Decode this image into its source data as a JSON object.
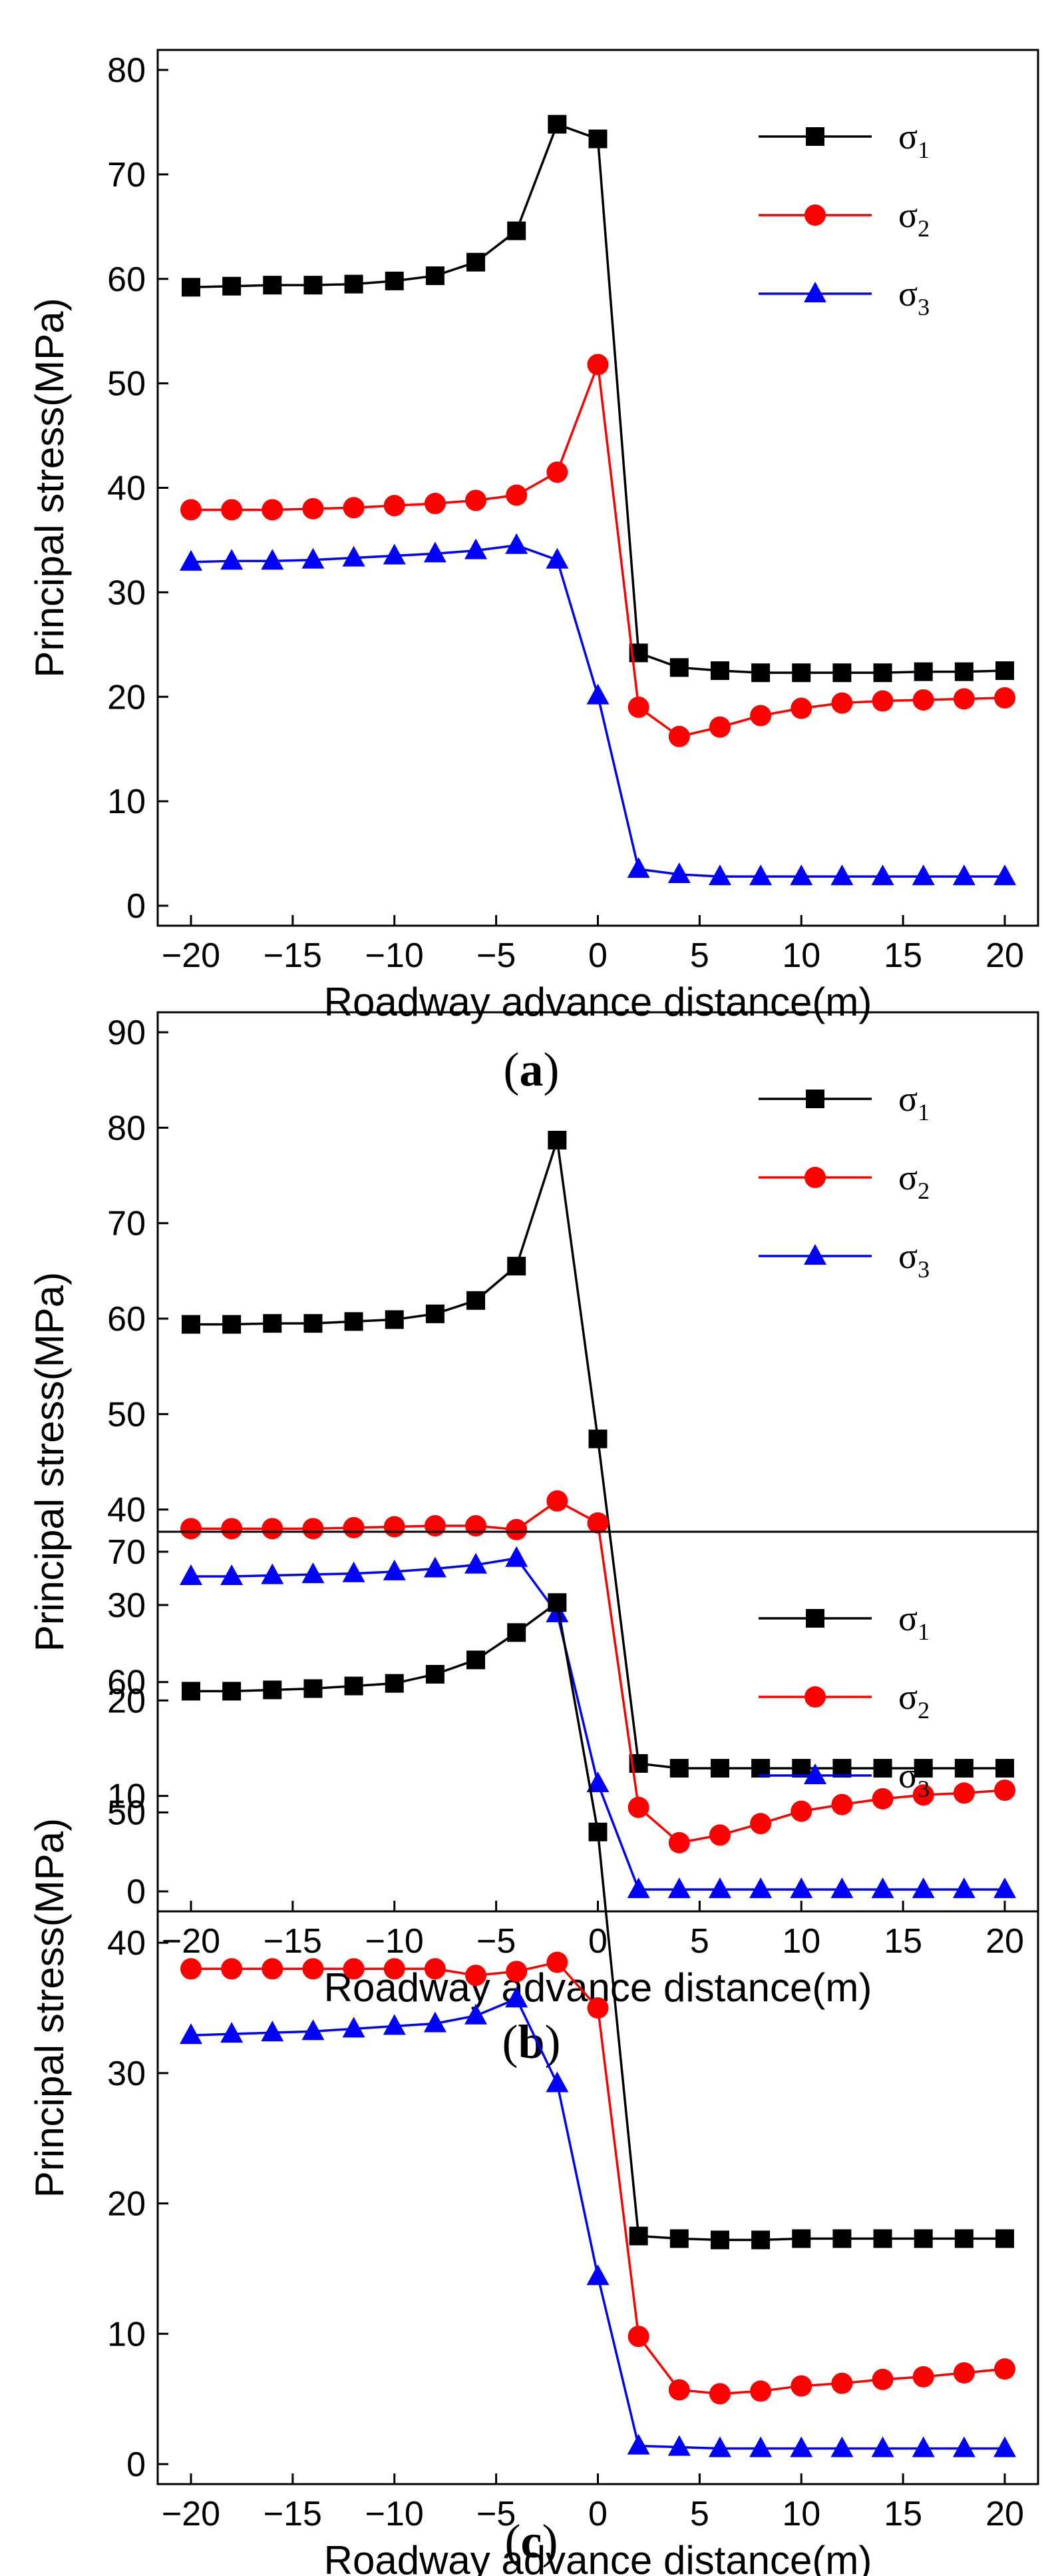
{
  "chart_data": [
    {
      "type": "line",
      "panel_label": "a",
      "xlabel": "Roadway advance distance(m)",
      "ylabel": "Principal stress(MPa)",
      "xlim": [
        -20,
        20
      ],
      "ylim": [
        0,
        80
      ],
      "xticks": [
        -20,
        -15,
        -10,
        -5,
        0,
        5,
        10,
        15,
        20
      ],
      "yticks": [
        0,
        10,
        20,
        30,
        40,
        50,
        60,
        70,
        80
      ],
      "legend_position": "top-right",
      "x": [
        -20,
        -18,
        -16,
        -14,
        -12,
        -10,
        -8,
        -6,
        -4,
        -2,
        0,
        2,
        4,
        6,
        8,
        10,
        12,
        14,
        16,
        18,
        20
      ],
      "series": [
        {
          "name": "σ",
          "sub": "1",
          "color": "#000000",
          "marker": "square",
          "values": [
            59.2,
            59.3,
            59.4,
            59.4,
            59.5,
            59.8,
            60.3,
            61.6,
            64.6,
            74.8,
            73.4,
            24.2,
            22.8,
            22.5,
            22.3,
            22.3,
            22.3,
            22.3,
            22.4,
            22.4,
            22.5
          ]
        },
        {
          "name": "σ",
          "sub": "2",
          "color": "#ff0000",
          "marker": "circle",
          "values": [
            37.9,
            37.9,
            37.9,
            38.0,
            38.1,
            38.3,
            38.5,
            38.8,
            39.3,
            41.5,
            51.8,
            19.0,
            16.2,
            17.1,
            18.2,
            18.9,
            19.4,
            19.6,
            19.7,
            19.8,
            19.9
          ]
        },
        {
          "name": "σ",
          "sub": "3",
          "color": "#0000ff",
          "marker": "triangle",
          "values": [
            32.9,
            33.0,
            33.0,
            33.1,
            33.3,
            33.5,
            33.7,
            34.0,
            34.5,
            33.1,
            20.1,
            3.5,
            3.0,
            2.8,
            2.8,
            2.8,
            2.8,
            2.8,
            2.8,
            2.8,
            2.8
          ]
        }
      ]
    },
    {
      "type": "line",
      "panel_label": "b",
      "xlabel": "Roadway advance distance(m)",
      "ylabel": "Principal stress(MPa)",
      "xlim": [
        -20,
        20
      ],
      "ylim": [
        0,
        90
      ],
      "xticks": [
        -20,
        -15,
        -10,
        -5,
        0,
        5,
        10,
        15,
        20
      ],
      "yticks": [
        0,
        10,
        20,
        30,
        40,
        50,
        60,
        70,
        80,
        90
      ],
      "legend_position": "top-right",
      "x": [
        -20,
        -18,
        -16,
        -14,
        -12,
        -10,
        -8,
        -6,
        -4,
        -2,
        0,
        2,
        4,
        6,
        8,
        10,
        12,
        14,
        16,
        18,
        20
      ],
      "series": [
        {
          "name": "σ",
          "sub": "1",
          "color": "#000000",
          "marker": "square",
          "values": [
            59.4,
            59.4,
            59.5,
            59.5,
            59.7,
            59.9,
            60.5,
            61.9,
            65.5,
            78.7,
            47.4,
            13.4,
            12.9,
            12.9,
            12.9,
            12.9,
            12.9,
            12.9,
            12.9,
            12.9,
            12.9
          ]
        },
        {
          "name": "σ",
          "sub": "2",
          "color": "#ff0000",
          "marker": "circle",
          "values": [
            38.0,
            38.0,
            38.0,
            38.0,
            38.1,
            38.2,
            38.3,
            38.3,
            37.9,
            40.9,
            38.6,
            8.8,
            5.1,
            5.9,
            7.1,
            8.4,
            9.1,
            9.7,
            10.1,
            10.3,
            10.6
          ]
        },
        {
          "name": "σ",
          "sub": "3",
          "color": "#0000ff",
          "marker": "triangle",
          "values": [
            33.0,
            33.0,
            33.1,
            33.2,
            33.3,
            33.5,
            33.8,
            34.2,
            34.9,
            29.1,
            11.3,
            0.2,
            0.2,
            0.2,
            0.2,
            0.2,
            0.2,
            0.2,
            0.2,
            0.2,
            0.2
          ]
        }
      ]
    },
    {
      "type": "line",
      "panel_label": "c",
      "xlabel": "Roadway advance distance(m)",
      "ylabel": "Principal stress(MPa)",
      "xlim": [
        -20,
        20
      ],
      "ylim": [
        0,
        70
      ],
      "xticks": [
        -20,
        -15,
        -10,
        -5,
        0,
        5,
        10,
        15,
        20
      ],
      "yticks": [
        0,
        10,
        20,
        30,
        40,
        50,
        60,
        70
      ],
      "legend_position": "top-right",
      "x": [
        -20,
        -18,
        -16,
        -14,
        -12,
        -10,
        -8,
        -6,
        -4,
        -2,
        0,
        2,
        4,
        6,
        8,
        10,
        12,
        14,
        16,
        18,
        20
      ],
      "series": [
        {
          "name": "σ",
          "sub": "1",
          "color": "#000000",
          "marker": "square",
          "values": [
            59.3,
            59.3,
            59.4,
            59.5,
            59.7,
            59.9,
            60.6,
            61.7,
            63.8,
            66.1,
            48.5,
            17.5,
            17.3,
            17.2,
            17.2,
            17.3,
            17.3,
            17.3,
            17.3,
            17.3,
            17.3
          ]
        },
        {
          "name": "σ",
          "sub": "2",
          "color": "#ff0000",
          "marker": "circle",
          "values": [
            38.0,
            38.0,
            38.0,
            38.0,
            38.0,
            38.0,
            38.0,
            37.5,
            37.8,
            38.5,
            35.0,
            9.8,
            5.7,
            5.4,
            5.6,
            6.0,
            6.2,
            6.5,
            6.7,
            7.0,
            7.3
          ]
        },
        {
          "name": "σ",
          "sub": "3",
          "color": "#0000ff",
          "marker": "triangle",
          "values": [
            32.9,
            33.0,
            33.1,
            33.2,
            33.4,
            33.6,
            33.8,
            34.4,
            35.7,
            29.2,
            14.4,
            1.4,
            1.3,
            1.2,
            1.2,
            1.2,
            1.2,
            1.2,
            1.2,
            1.2,
            1.2
          ]
        }
      ]
    }
  ]
}
